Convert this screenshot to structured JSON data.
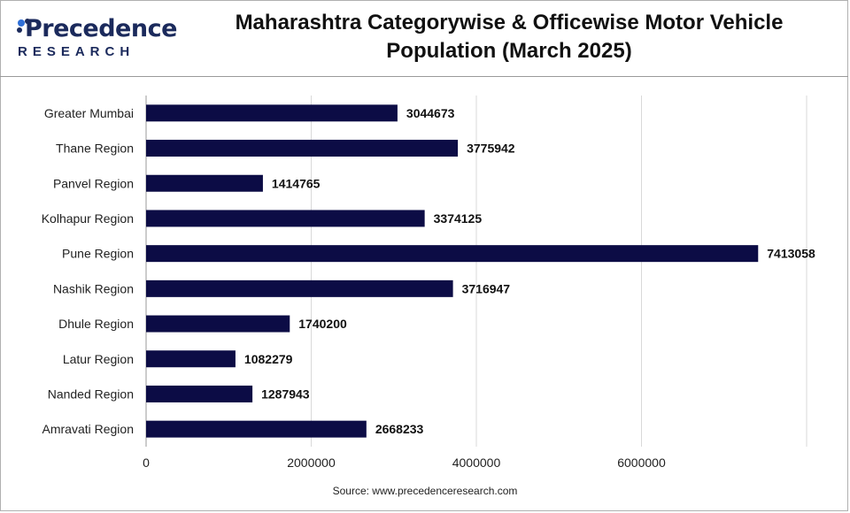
{
  "brand": {
    "name": "Precedence",
    "tagline": "RESEARCH"
  },
  "source": "Source: www.precedenceresearch.com",
  "colors": {
    "bar": "#0c0c45",
    "brand": "#1b2a5c",
    "grid": "#d9d9d9"
  },
  "chart_data": {
    "type": "bar",
    "orientation": "horizontal",
    "title": "Maharashtra Categorywise & Officewise Motor Vehicle Population (March 2025)",
    "xlabel": "",
    "ylabel": "",
    "xlim": [
      0,
      8000000
    ],
    "xticks": [
      0,
      2000000,
      4000000,
      6000000
    ],
    "grid": true,
    "legend": "none",
    "categories": [
      "Greater Mumbai",
      "Thane Region",
      "Panvel Region",
      "Kolhapur Region",
      "Pune Region",
      "Nashik Region",
      "Dhule Region",
      "Latur Region",
      "Nanded Region",
      "Amravati Region"
    ],
    "values": [
      3044673,
      3775942,
      1414765,
      3374125,
      7413058,
      3716947,
      1740200,
      1082279,
      1287943,
      2668233
    ]
  }
}
